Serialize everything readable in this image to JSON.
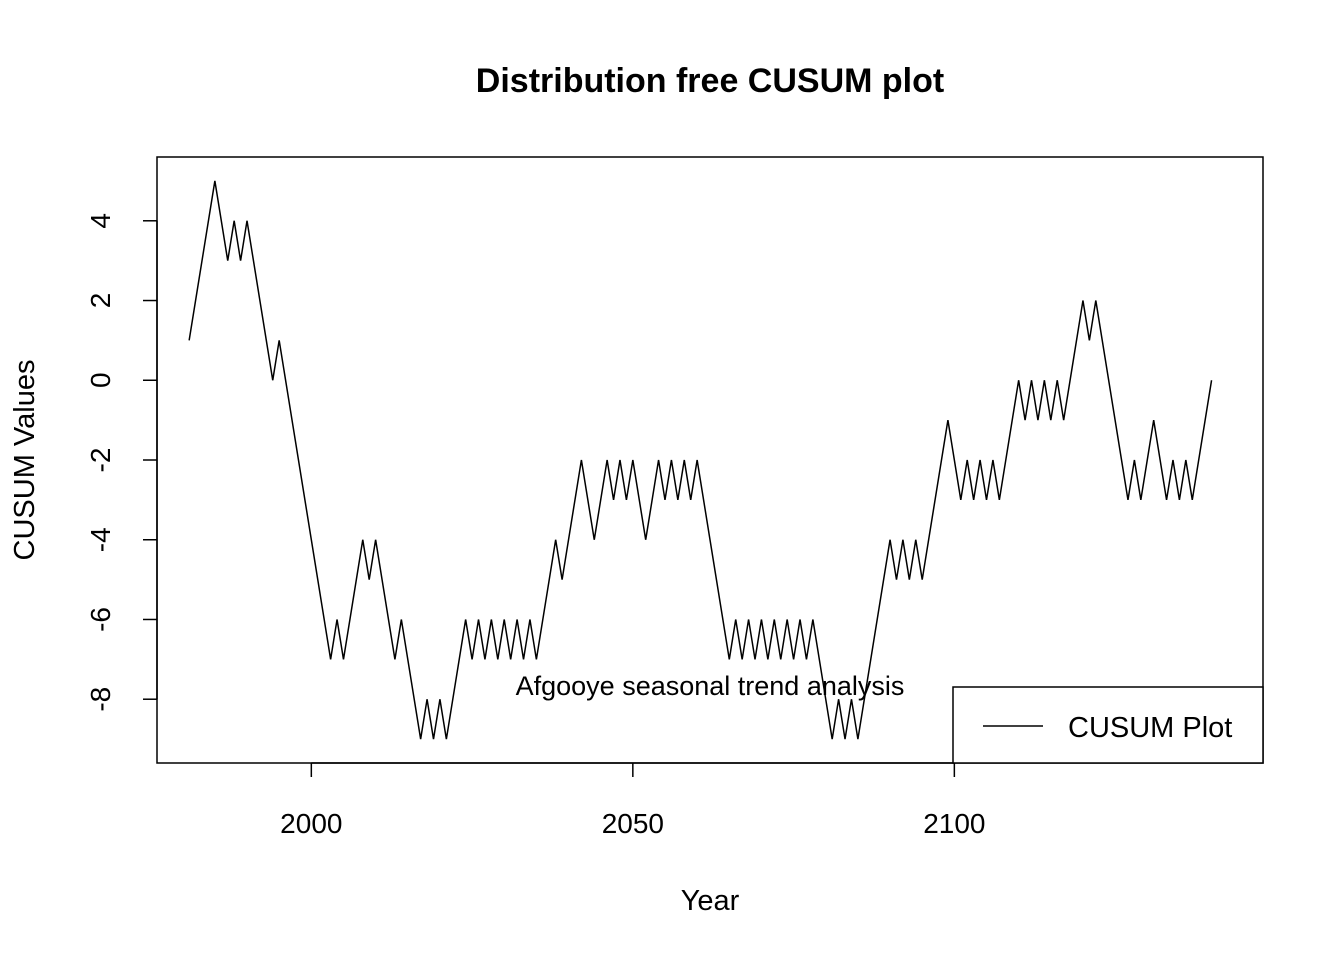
{
  "chart_data": {
    "type": "line",
    "title": "Distribution free CUSUM plot",
    "xlabel": "Year",
    "ylabel": "CUSUM Values",
    "xlim": [
      1976,
      2148
    ],
    "ylim": [
      -9.6,
      5.6
    ],
    "xticks": [
      2000,
      2050,
      2100
    ],
    "yticks": [
      -8,
      -6,
      -4,
      -2,
      0,
      2,
      4
    ],
    "annotation": "Afgooye seasonal trend analysis",
    "legend": {
      "position": "bottom-right",
      "entries": [
        "CUSUM Plot"
      ]
    },
    "grid": false,
    "series": [
      {
        "name": "CUSUM Plot",
        "color": "#000000",
        "x_start": 1981,
        "x_step": 1,
        "values": [
          1,
          2,
          3,
          4,
          5,
          4,
          3,
          4,
          3,
          4,
          3,
          2,
          1,
          0,
          1,
          0,
          -1,
          -2,
          -3,
          -4,
          -5,
          -6,
          -7,
          -6,
          -7,
          -6,
          -5,
          -4,
          -5,
          -4,
          -5,
          -6,
          -7,
          -6,
          -7,
          -8,
          -9,
          -8,
          -9,
          -8,
          -9,
          -8,
          -7,
          -6,
          -7,
          -6,
          -7,
          -6,
          -7,
          -6,
          -7,
          -6,
          -7,
          -6,
          -7,
          -6,
          -5,
          -4,
          -5,
          -4,
          -3,
          -2,
          -3,
          -4,
          -3,
          -2,
          -3,
          -2,
          -3,
          -2,
          -3,
          -4,
          -3,
          -2,
          -3,
          -2,
          -3,
          -2,
          -3,
          -2,
          -3,
          -4,
          -5,
          -6,
          -7,
          -6,
          -7,
          -6,
          -7,
          -6,
          -7,
          -6,
          -7,
          -6,
          -7,
          -6,
          -7,
          -6,
          -7,
          -8,
          -9,
          -8,
          -9,
          -8,
          -9,
          -8,
          -7,
          -6,
          -5,
          -4,
          -5,
          -4,
          -5,
          -4,
          -5,
          -4,
          -3,
          -2,
          -1,
          -2,
          -3,
          -2,
          -3,
          -2,
          -3,
          -2,
          -3,
          -2,
          -1,
          0,
          -1,
          0,
          -1,
          0,
          -1,
          0,
          -1,
          0,
          1,
          2,
          1,
          2,
          1,
          0,
          -1,
          -2,
          -3,
          -2,
          -3,
          -2,
          -1,
          -2,
          -3,
          -2,
          -3,
          -2,
          -3,
          -2,
          -1,
          0
        ]
      }
    ]
  }
}
